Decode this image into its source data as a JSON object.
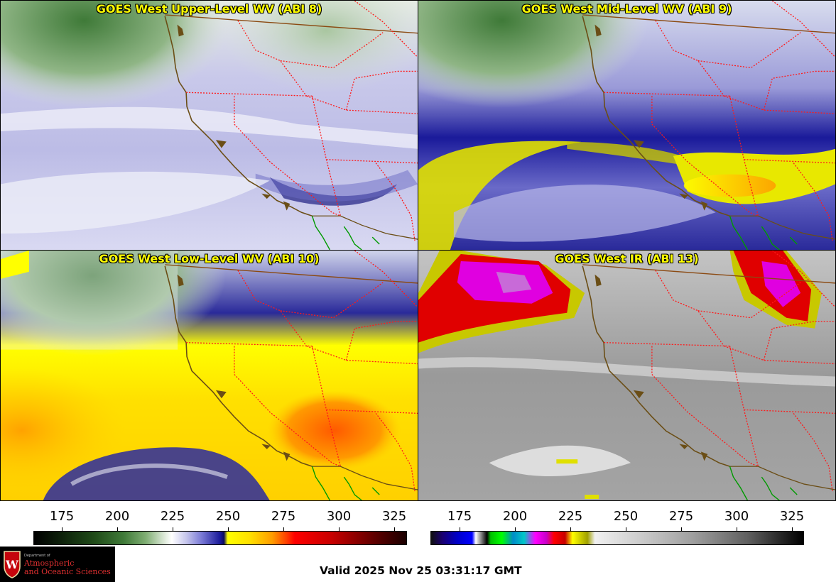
{
  "panels": [
    {
      "title": "GOES West Upper-Level WV (ABI 8)"
    },
    {
      "title": "GOES West Mid-Level WV (ABI 9)"
    },
    {
      "title": "GOES West Low-Level WV (ABI 10)"
    },
    {
      "title": "GOES West IR (ABI 13)"
    }
  ],
  "colorbars": {
    "wv": {
      "ticks": [
        "175",
        "200",
        "225",
        "250",
        "275",
        "300",
        "325"
      ]
    },
    "ir": {
      "ticks": [
        "175",
        "200",
        "225",
        "250",
        "275",
        "300",
        "325"
      ]
    }
  },
  "logo": {
    "dept": "Department of",
    "line1": "Atmospheric",
    "line2": "and Oceanic Sciences",
    "crest_letter": "W"
  },
  "valid_time": "Valid 2025 Nov 25 03:31:17 GMT",
  "colors": {
    "title_text": "#ffff00",
    "state_border": "#ff0000",
    "coastline": "#6b4e16",
    "mexico_border": "#00a000"
  }
}
